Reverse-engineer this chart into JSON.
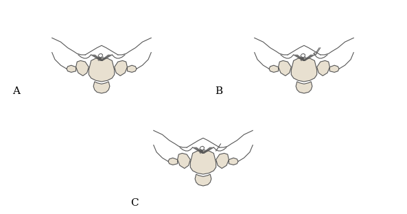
{
  "background_color": "#ffffff",
  "line_color": "#555555",
  "fill_color": "#e8e0d0",
  "label_A": "A",
  "label_B": "B",
  "label_C": "C",
  "label_fontsize": 11,
  "fig_width": 5.93,
  "fig_height": 3.12,
  "dpi": 100
}
